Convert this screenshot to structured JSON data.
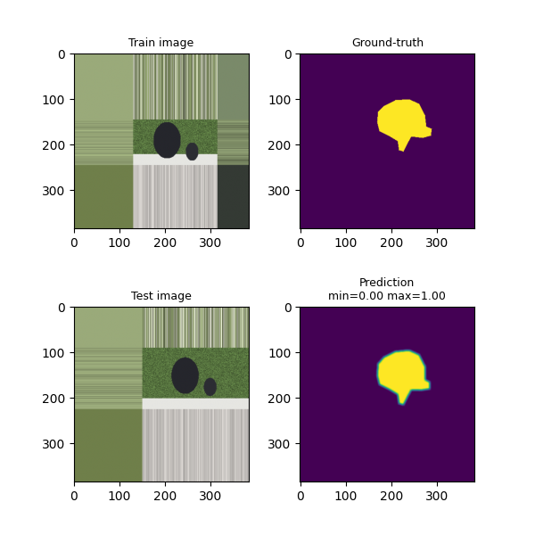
{
  "chart_data": [
    {
      "type": "image",
      "title": "Train image",
      "xlim": [
        -0.5,
        383.5
      ],
      "ylim": [
        383.5,
        -0.5
      ],
      "xticks": [
        0,
        100,
        200,
        300
      ],
      "yticks": [
        0,
        100,
        200,
        300
      ]
    },
    {
      "type": "mask",
      "title": "Ground-truth",
      "xlim": [
        -0.5,
        383.5
      ],
      "ylim": [
        383.5,
        -0.5
      ],
      "xticks": [
        0,
        100,
        200,
        300
      ],
      "yticks": [
        0,
        100,
        200,
        300
      ],
      "color_range": [
        0.0,
        1.0
      ],
      "mask_polygon": [
        [
          185,
          115
        ],
        [
          210,
          102
        ],
        [
          240,
          100
        ],
        [
          262,
          110
        ],
        [
          275,
          135
        ],
        [
          278,
          160
        ],
        [
          290,
          165
        ],
        [
          288,
          180
        ],
        [
          270,
          185
        ],
        [
          245,
          182
        ],
        [
          235,
          200
        ],
        [
          228,
          215
        ],
        [
          218,
          212
        ],
        [
          215,
          192
        ],
        [
          195,
          180
        ],
        [
          175,
          170
        ],
        [
          170,
          150
        ],
        [
          172,
          128
        ]
      ]
    },
    {
      "type": "image",
      "title": "Test image",
      "xlim": [
        -0.5,
        383.5
      ],
      "ylim": [
        383.5,
        -0.5
      ],
      "xticks": [
        0,
        100,
        200,
        300
      ],
      "yticks": [
        0,
        100,
        200,
        300
      ]
    },
    {
      "type": "mask",
      "title": "Prediction\nmin=0.00 max=1.00",
      "xlim": [
        -0.5,
        383.5
      ],
      "ylim": [
        383.5,
        -0.5
      ],
      "xticks": [
        0,
        100,
        200,
        300
      ],
      "yticks": [
        0,
        100,
        200,
        300
      ],
      "color_range": [
        0.0,
        1.0
      ],
      "mask_polygon": [
        [
          185,
          110
        ],
        [
          210,
          98
        ],
        [
          240,
          95
        ],
        [
          262,
          105
        ],
        [
          275,
          130
        ],
        [
          275,
          160
        ],
        [
          285,
          165
        ],
        [
          285,
          180
        ],
        [
          265,
          183
        ],
        [
          245,
          182
        ],
        [
          235,
          200
        ],
        [
          228,
          215
        ],
        [
          218,
          212
        ],
        [
          215,
          192
        ],
        [
          195,
          180
        ],
        [
          175,
          170
        ],
        [
          170,
          150
        ],
        [
          172,
          125
        ]
      ]
    }
  ]
}
